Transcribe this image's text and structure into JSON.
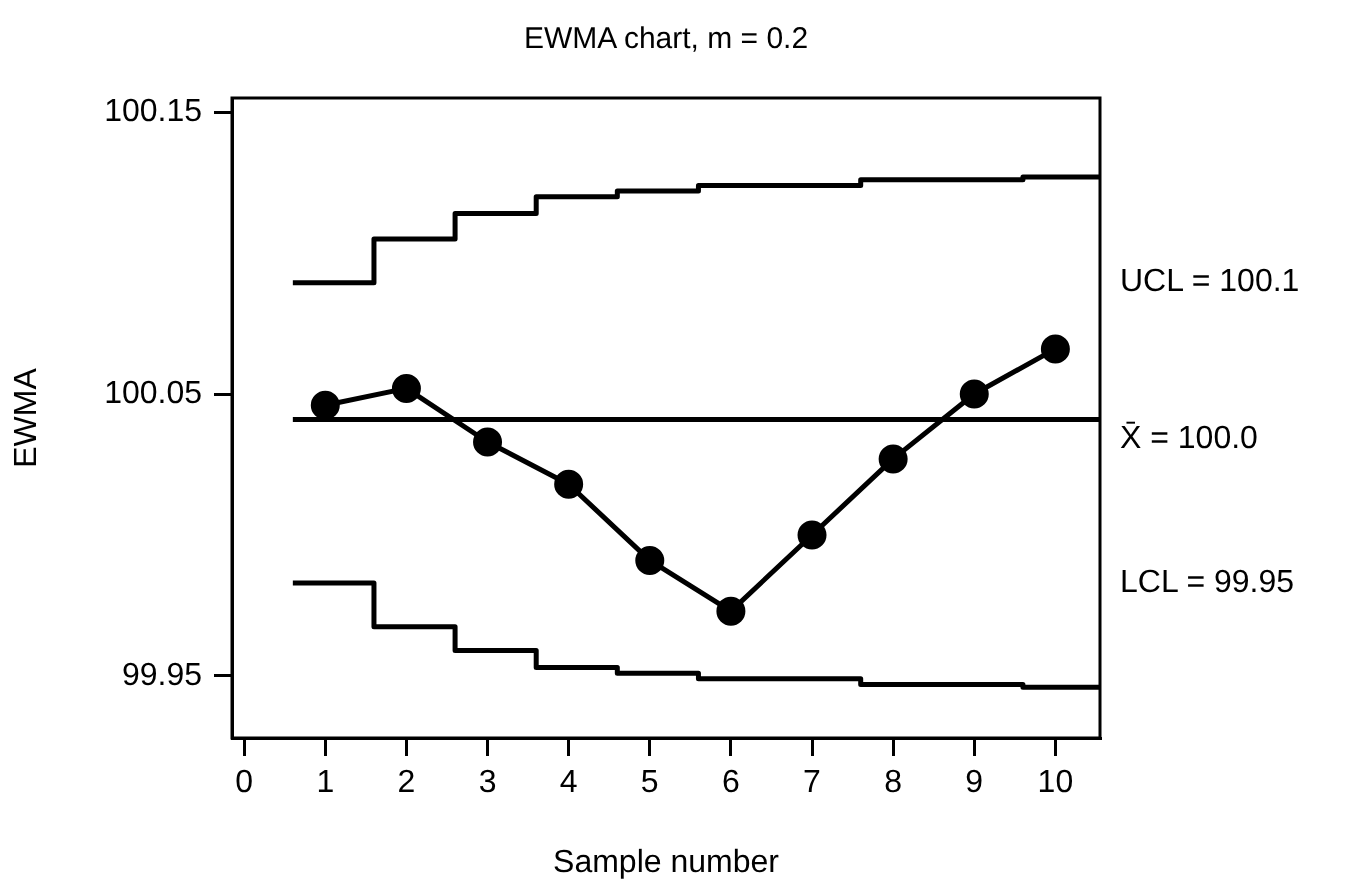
{
  "chart_data": {
    "type": "line",
    "title": "EWMA chart, m = 0.2",
    "xlabel": "Sample number",
    "ylabel": "EWMA",
    "x": [
      1,
      2,
      3,
      4,
      5,
      6,
      7,
      8,
      9,
      10
    ],
    "xlim": [
      -0.15,
      10.55
    ],
    "xticks": [
      0,
      1,
      2,
      3,
      4,
      5,
      6,
      7,
      8,
      9,
      10
    ],
    "ylim": [
      99.928,
      100.155
    ],
    "yticks": [
      99.95,
      100.05,
      100.15
    ],
    "grid": false,
    "legend": false,
    "marker": "circle",
    "line_style": "solid",
    "series": [
      {
        "values": [
          100.046,
          100.052,
          100.033,
          100.018,
          99.991,
          99.973,
          100.0,
          100.027,
          100.05,
          100.066
        ],
        "color": "#000000"
      },
      {
        "name": "UCL = 100.1",
        "type": "step",
        "marker": "none",
        "color": "#000000",
        "x": [
          0.6,
          1.6,
          2.6,
          3.6,
          4.6,
          5.6,
          7.6,
          9.6,
          10.55
        ],
        "values": [
          100.0895,
          100.105,
          100.114,
          100.12,
          100.122,
          100.124,
          100.126,
          100.127,
          100.127
        ]
      },
      {
        "name": "LCL = 99.95",
        "type": "step",
        "marker": "none",
        "color": "#000000",
        "x": [
          0.6,
          1.6,
          2.6,
          3.6,
          4.6,
          5.6,
          7.6,
          9.6,
          10.55
        ],
        "values": [
          99.983,
          99.9675,
          99.959,
          99.953,
          99.951,
          99.949,
          99.947,
          99.946,
          99.946
        ]
      }
    ],
    "ref_lines": [
      {
        "axis": "y",
        "value": 100.041,
        "label": "X̄ = 100.0",
        "color": "#000000"
      }
    ]
  }
}
